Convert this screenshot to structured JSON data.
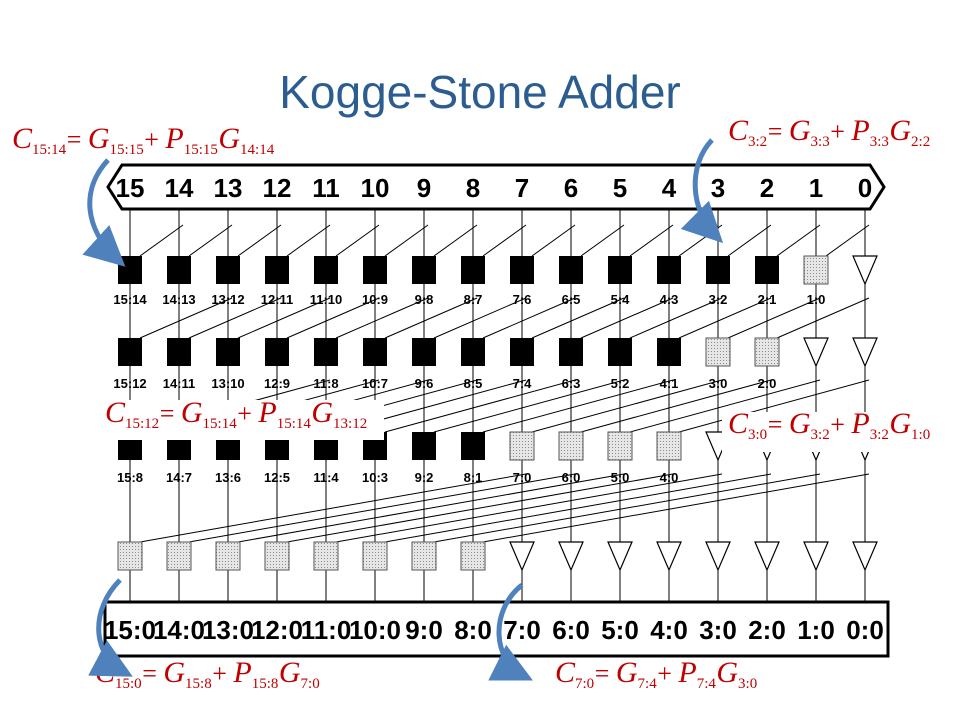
{
  "title": "Kogge-Stone Adder",
  "bit_indices": [
    "15",
    "14",
    "13",
    "12",
    "11",
    "10",
    "9",
    "8",
    "7",
    "6",
    "5",
    "4",
    "3",
    "2",
    "1",
    "0"
  ],
  "levels": [
    {
      "labels": [
        "15:14",
        "14:13",
        "13:12",
        "12:11",
        "11:10",
        "10:9",
        "9:8",
        "8:7",
        "7:6",
        "6:5",
        "5:4",
        "4:3",
        "3:2",
        "2:1",
        "1:0"
      ],
      "black_count": 14,
      "gray_count": 1,
      "buffer_count": 1
    },
    {
      "labels": [
        "15:12",
        "14:11",
        "13:10",
        "12:9",
        "11:8",
        "10:7",
        "9:6",
        "8:5",
        "7:4",
        "6:3",
        "5:2",
        "4:1",
        "3:0",
        "2:0"
      ],
      "black_count": 12,
      "gray_count": 2,
      "buffer_count": 2
    },
    {
      "labels": [
        "15:8",
        "14:7",
        "13:6",
        "12:5",
        "11:4",
        "10:3",
        "9:2",
        "8:1",
        "7:0",
        "6:0",
        "5:0",
        "4:0"
      ],
      "black_count": 8,
      "gray_count": 4,
      "buffer_count": 4
    },
    {
      "labels": [],
      "black_count": 0,
      "gray_count": 8,
      "buffer_count": 8
    }
  ],
  "outputs": [
    "15:0",
    "14:0",
    "13:0",
    "12:0",
    "11:0",
    "10:0",
    "9:0",
    "8:0",
    "7:0",
    "6:0",
    "5:0",
    "4:0",
    "3:0",
    "2:0",
    "1:0",
    "0:0"
  ],
  "equations": [
    {
      "lhs": "C",
      "lhs_sub": "15:14",
      "t1": "G",
      "t1_sub": "15:15",
      "t2": "P",
      "t2_sub": "15:15",
      "t3": "G",
      "t3_sub": "14:14"
    },
    {
      "lhs": "C",
      "lhs_sub": "3:2",
      "t1": "G",
      "t1_sub": "3:3",
      "t2": "P",
      "t2_sub": "3:3",
      "t3": "G",
      "t3_sub": "2:2"
    },
    {
      "lhs": "C",
      "lhs_sub": "15:12",
      "t1": "G",
      "t1_sub": "15:14",
      "t2": "P",
      "t2_sub": "15:14",
      "t3": "G",
      "t3_sub": "13:12"
    },
    {
      "lhs": "C",
      "lhs_sub": "3:0",
      "t1": "G",
      "t1_sub": "3:2",
      "t2": "P",
      "t2_sub": "3:2",
      "t3": "G",
      "t3_sub": "1:0"
    },
    {
      "lhs": "C",
      "lhs_sub": "15:0",
      "t1": "G",
      "t1_sub": "15:8",
      "t2": "P",
      "t2_sub": "15:8",
      "t3": "G",
      "t3_sub": "7:0"
    },
    {
      "lhs": "C",
      "lhs_sub": "7:0",
      "t1": "G",
      "t1_sub": "7:4",
      "t2": "P",
      "t2_sub": "7:4",
      "t3": "G",
      "t3_sub": "3:0"
    }
  ],
  "colors": {
    "title": "#2b5d91",
    "equation": "#c00000",
    "arrow": "#4f81bd",
    "black_cell": "#000000",
    "gray_cell": "#c8c8c8"
  }
}
